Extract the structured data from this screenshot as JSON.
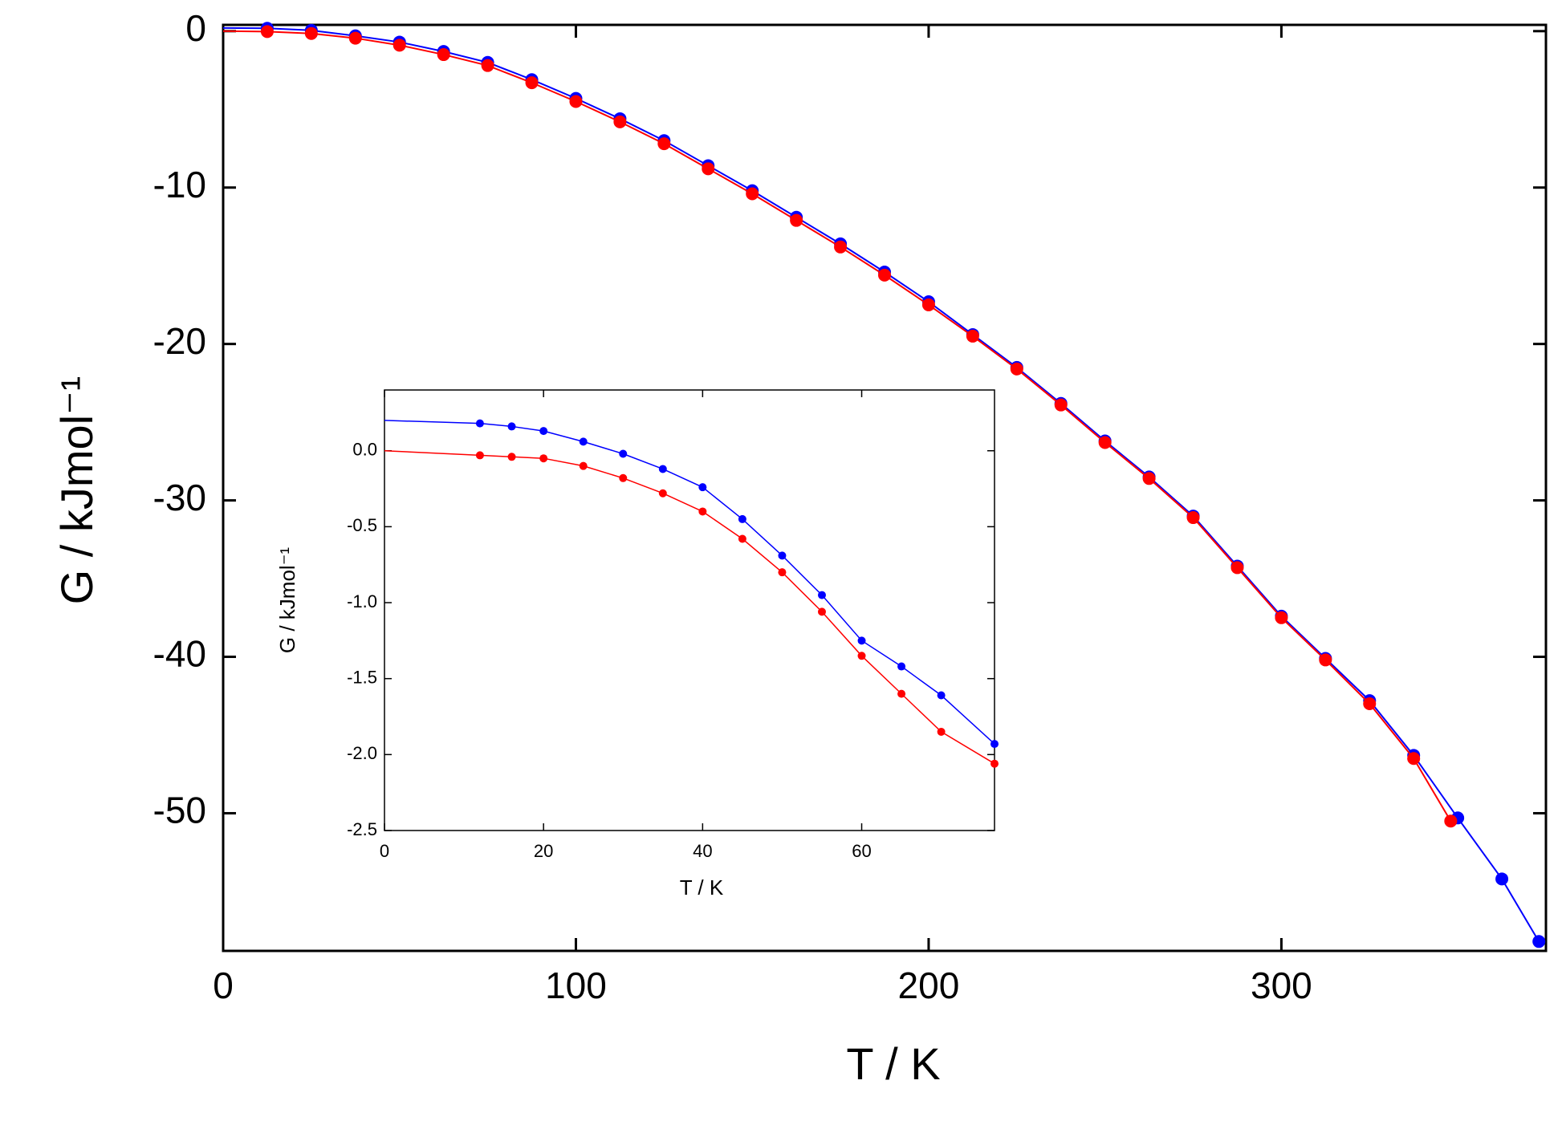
{
  "chart_data": [
    {
      "type": "line",
      "xlabel": "T / K",
      "ylabel": "G / kJmol⁻¹",
      "xlim": [
        0,
        375
      ],
      "ylim": [
        -58.8,
        0.4
      ],
      "xticks": [
        0,
        100,
        200,
        300
      ],
      "yticks": [
        0,
        -10,
        -20,
        -30,
        -40,
        -50
      ],
      "series": [
        {
          "name": "blue",
          "color": "#0000ff",
          "x": [
            0,
            12.5,
            25,
            37.5,
            50,
            62.5,
            75,
            87.5,
            100,
            112.5,
            125,
            137.5,
            150,
            162.5,
            175,
            187.5,
            200,
            212.5,
            225,
            237.5,
            250,
            262.5,
            275,
            287.5,
            300,
            312.5,
            325,
            337.5,
            350,
            362.5,
            373
          ],
          "values": [
            0.2,
            0.18,
            0.05,
            -0.3,
            -0.7,
            -1.3,
            -2.0,
            -3.1,
            -4.3,
            -5.6,
            -7.0,
            -8.6,
            -10.2,
            -11.9,
            -13.6,
            -15.4,
            -17.3,
            -19.4,
            -21.5,
            -23.8,
            -26.2,
            -28.5,
            -31.0,
            -34.2,
            -37.4,
            -40.1,
            -42.8,
            -46.3,
            -50.3,
            -54.2,
            -58.2
          ]
        },
        {
          "name": "red",
          "color": "#ff0000",
          "x": [
            0,
            12.5,
            25,
            37.5,
            50,
            62.5,
            75,
            87.5,
            100,
            112.5,
            125,
            137.5,
            150,
            162.5,
            175,
            187.5,
            200,
            212.5,
            225,
            237.5,
            250,
            262.5,
            275,
            287.5,
            300,
            312.5,
            325,
            337.5,
            348
          ],
          "values": [
            0.0,
            -0.03,
            -0.15,
            -0.45,
            -0.9,
            -1.5,
            -2.2,
            -3.3,
            -4.5,
            -5.8,
            -7.2,
            -8.8,
            -10.4,
            -12.1,
            -13.8,
            -15.6,
            -17.5,
            -19.5,
            -21.6,
            -23.9,
            -26.3,
            -28.6,
            -31.1,
            -34.3,
            -37.5,
            -40.2,
            -43.0,
            -46.5,
            -50.5
          ]
        }
      ]
    },
    {
      "type": "line",
      "xlabel": "T / K",
      "ylabel": "G / kJmol⁻¹",
      "xlim": [
        0,
        76.7
      ],
      "ylim": [
        -2.5,
        0.4
      ],
      "xticks": [
        0,
        20,
        40,
        60
      ],
      "yticks": [
        {
          "value": 0,
          "label": "0.0"
        },
        -0.5,
        {
          "value": -1,
          "label": "-1.0"
        },
        -1.5,
        {
          "value": -2,
          "label": "-2.0"
        },
        -2.5
      ],
      "series": [
        {
          "name": "blue",
          "color": "#0000ff",
          "x": [
            0,
            12,
            16,
            20,
            25,
            30,
            35,
            40,
            45,
            50,
            55,
            60,
            65,
            70,
            76.7
          ],
          "values": [
            0.2,
            0.18,
            0.16,
            0.13,
            0.06,
            -0.02,
            -0.12,
            -0.24,
            -0.45,
            -0.69,
            -0.95,
            -1.25,
            -1.42,
            -1.61,
            -1.93
          ]
        },
        {
          "name": "red",
          "color": "#ff0000",
          "x": [
            0,
            12,
            16,
            20,
            25,
            30,
            35,
            40,
            45,
            50,
            55,
            60,
            65,
            70,
            76.7
          ],
          "values": [
            0.0,
            -0.03,
            -0.04,
            -0.05,
            -0.1,
            -0.18,
            -0.28,
            -0.4,
            -0.58,
            -0.8,
            -1.06,
            -1.35,
            -1.6,
            -1.85,
            -2.06
          ]
        }
      ]
    }
  ]
}
